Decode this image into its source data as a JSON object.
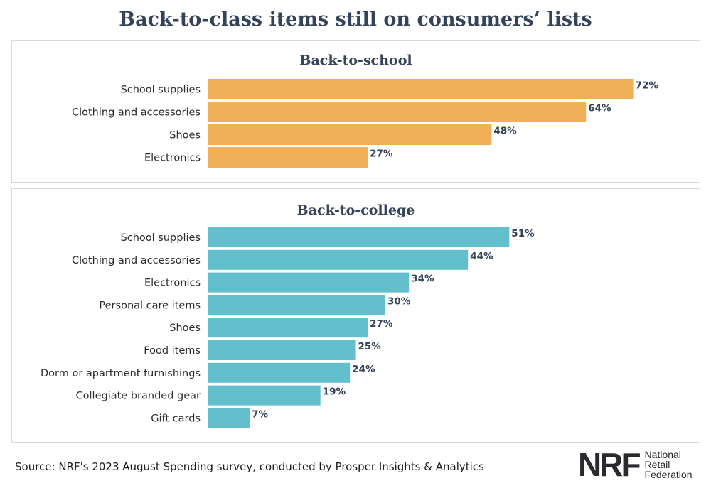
{
  "title": "Back-to-class items still on consumers’ lists",
  "chart_data": [
    {
      "type": "bar",
      "orientation": "horizontal",
      "title": "Back-to-school",
      "color": "#f0b057",
      "categories": [
        "School supplies",
        "Clothing and accessories",
        "Shoes",
        "Electronics"
      ],
      "values": [
        72,
        64,
        48,
        27
      ],
      "labels": [
        "72%",
        "64%",
        "48%",
        "27%"
      ],
      "unit": "%"
    },
    {
      "type": "bar",
      "orientation": "horizontal",
      "title": "Back-to-college",
      "color": "#64bfcd",
      "categories": [
        "School supplies",
        "Clothing and accessories",
        "Electronics",
        "Personal care items",
        "Shoes",
        "Food items",
        "Dorm or apartment furnishings",
        "Collegiate branded gear",
        "Gift cards"
      ],
      "values": [
        51,
        44,
        34,
        30,
        27,
        25,
        24,
        19,
        7
      ],
      "labels": [
        "51%",
        "44%",
        "34%",
        "30%",
        "27%",
        "25%",
        "24%",
        "19%",
        "7%"
      ],
      "unit": "%"
    }
  ],
  "source": "Source: NRF's 2023 August Spending survey, conducted by Prosper Insights & Analytics",
  "logo": {
    "mark": "NRF",
    "lines": [
      "National",
      "Retail",
      "Federation"
    ]
  }
}
